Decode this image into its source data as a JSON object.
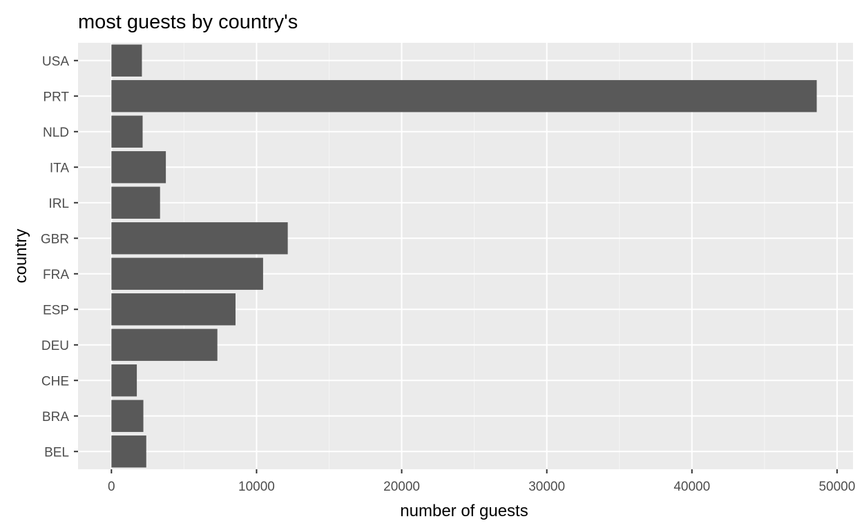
{
  "chart_data": {
    "type": "bar",
    "orientation": "horizontal",
    "title": "most guests by country's",
    "xlabel": "number of guests",
    "ylabel": "country",
    "categories": [
      "USA",
      "PRT",
      "NLD",
      "ITA",
      "IRL",
      "GBR",
      "FRA",
      "ESP",
      "DEU",
      "CHE",
      "BRA",
      "BEL"
    ],
    "values": [
      2100,
      48600,
      2150,
      3750,
      3350,
      12150,
      10450,
      8550,
      7300,
      1750,
      2200,
      2400
    ],
    "xlim": [
      -2300,
      51100
    ],
    "xticks": [
      0,
      10000,
      20000,
      30000,
      40000,
      50000
    ],
    "xtick_labels": [
      "0",
      "10000",
      "20000",
      "30000",
      "40000",
      "50000"
    ],
    "grid": true,
    "legend": "none"
  },
  "colors": {
    "panel_background": "#ebebeb",
    "grid_major": "#ffffff",
    "grid_minor": "#f5f5f5",
    "bar_fill": "#595959",
    "tick_text": "#4d4d4d",
    "title_text": "#000000"
  }
}
